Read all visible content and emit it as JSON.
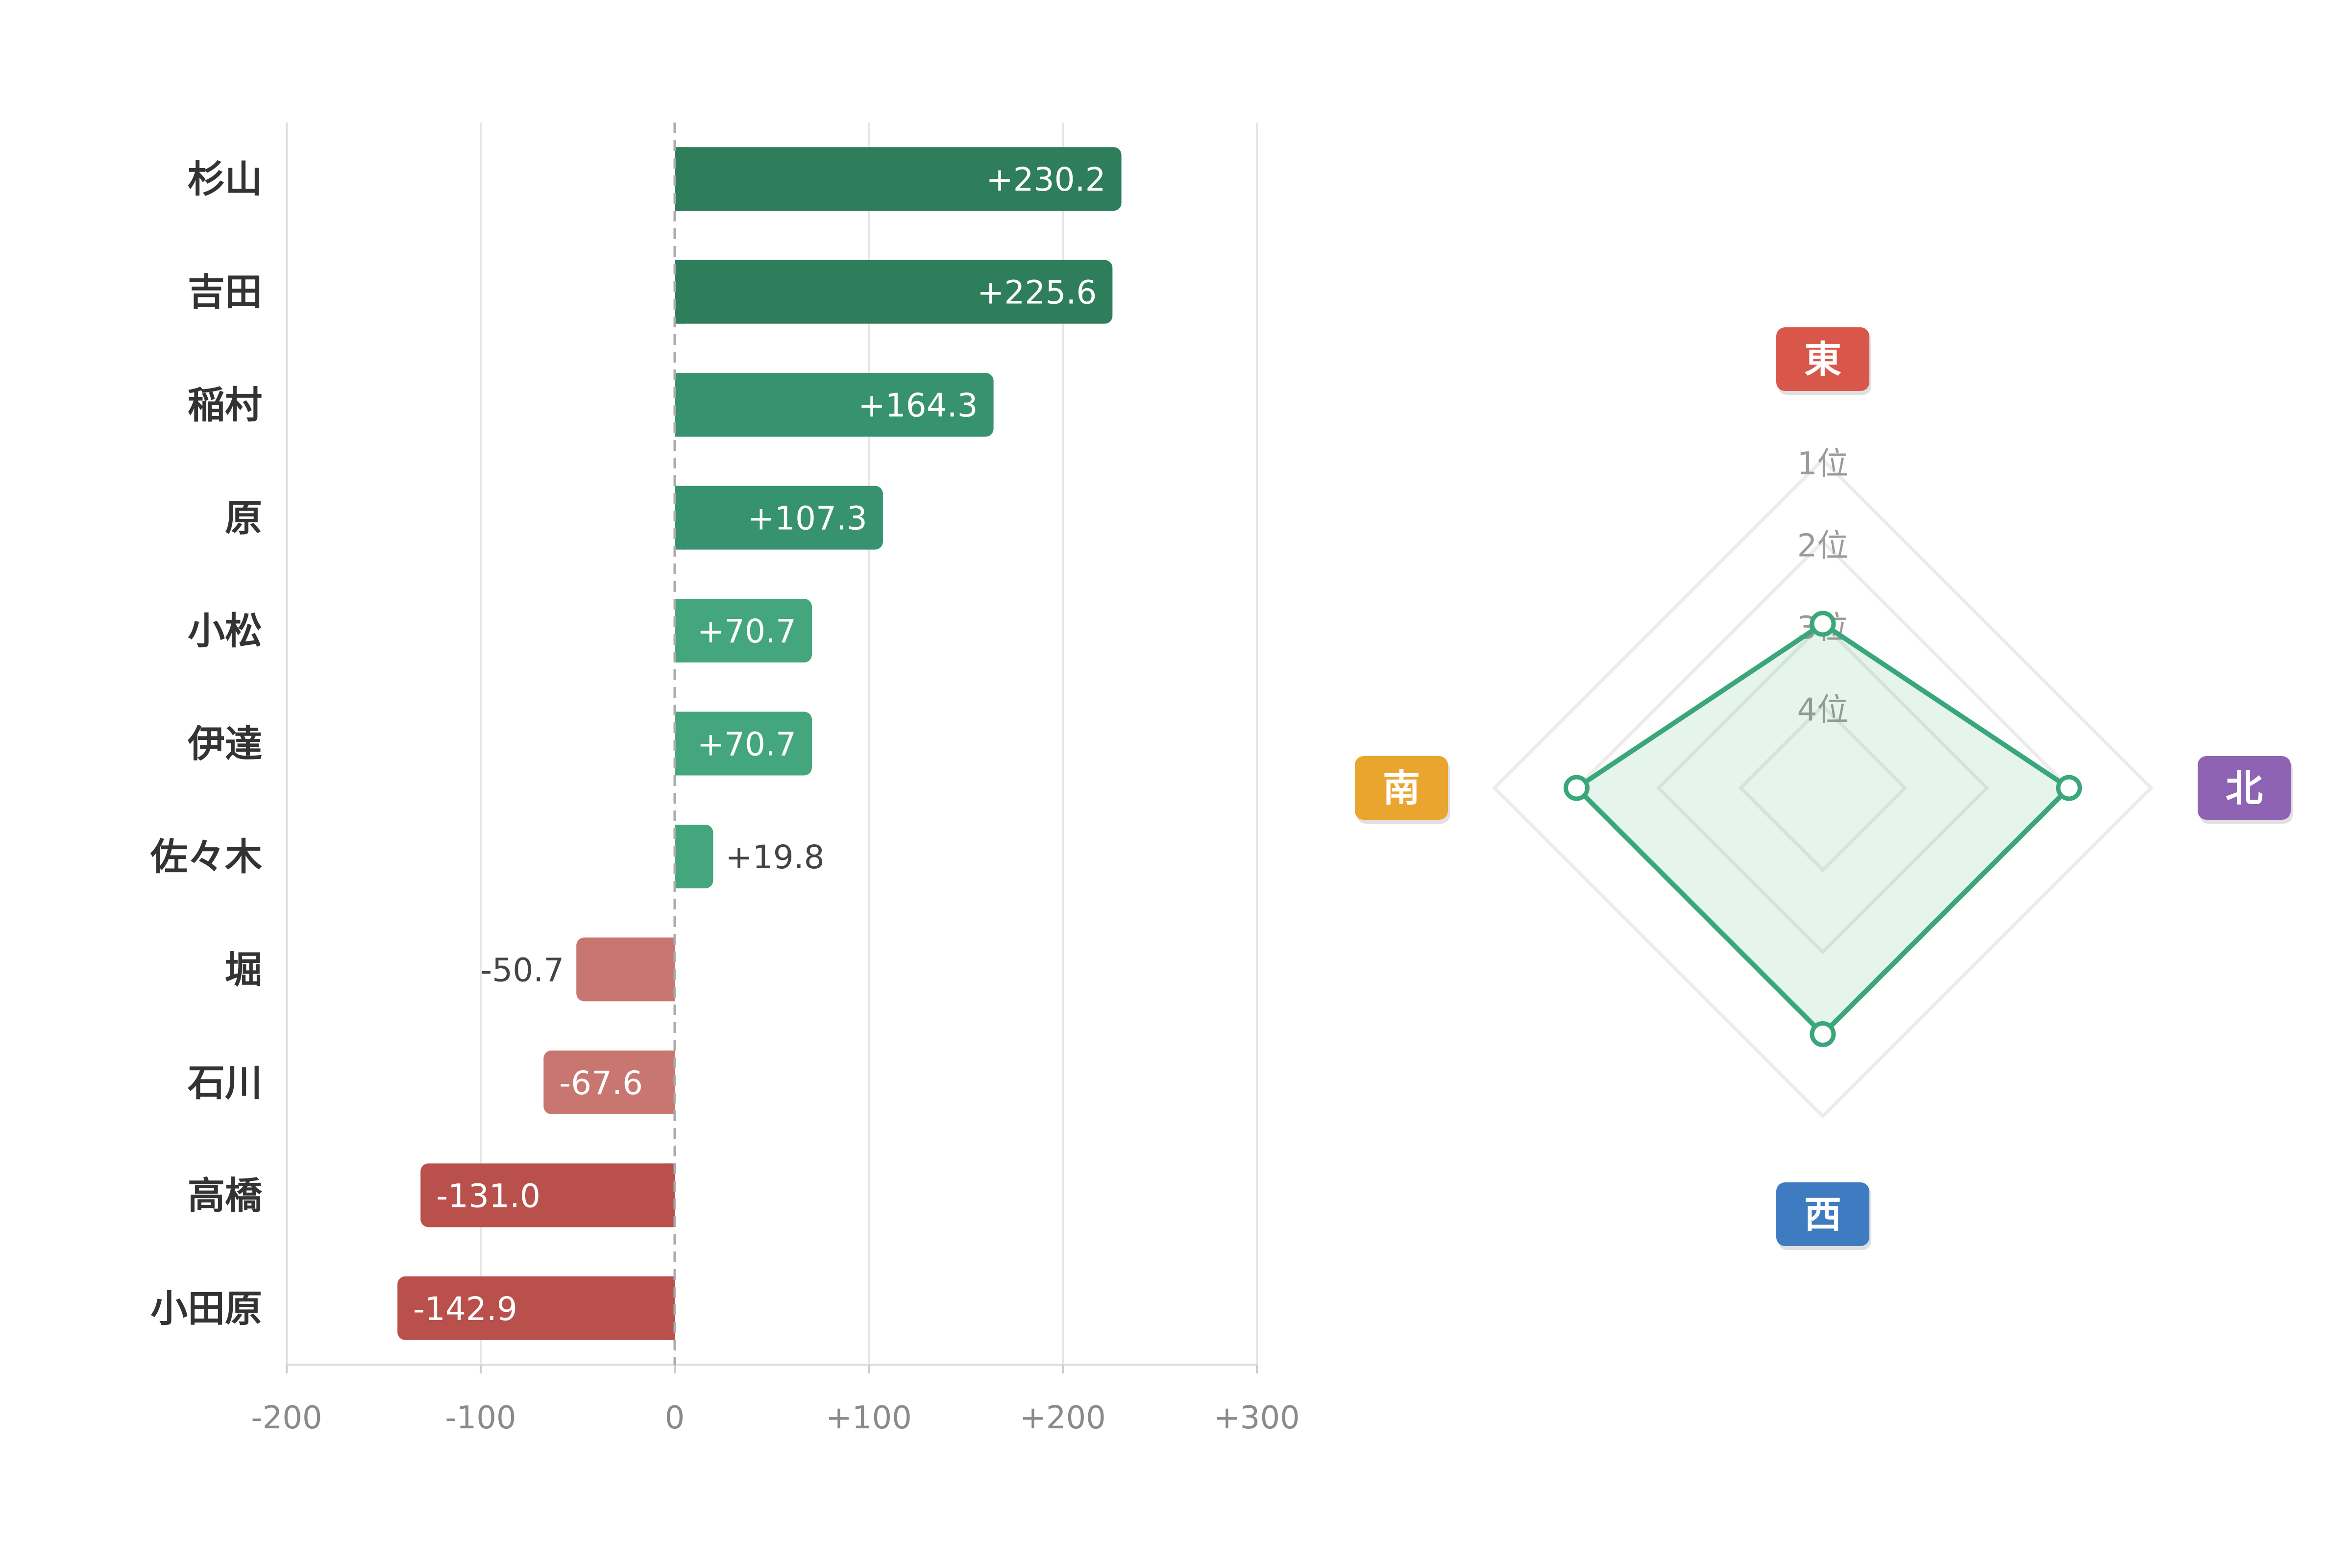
{
  "chart_data": [
    {
      "type": "bar",
      "orientation": "horizontal",
      "categories": [
        "杉山",
        "吉田",
        "稲村",
        "原",
        "小松",
        "伊達",
        "佐々木",
        "堀",
        "石川",
        "高橋",
        "小田原"
      ],
      "values": [
        230.2,
        225.6,
        164.3,
        107.3,
        70.7,
        70.7,
        19.8,
        -50.7,
        -67.6,
        -131.0,
        -142.9
      ],
      "value_labels": [
        "+230.2",
        "+225.6",
        "+164.3",
        "+107.3",
        "+70.7",
        "+70.7",
        "+19.8",
        "-50.7",
        "-67.6",
        "-131.0",
        "-142.9"
      ],
      "xlim": [
        -200,
        300
      ],
      "xticks": [
        -200,
        -100,
        0,
        100,
        200,
        300
      ],
      "xtick_labels": [
        "-200",
        "-100",
        "0",
        "+100",
        "+200",
        "+300"
      ],
      "grid": true,
      "colors": {
        "positive_dark": "#2e7d5b",
        "positive_mid": "#379270",
        "positive_light": "#44a67d",
        "negative_light": "#c97570",
        "negative_dark": "#b9504b",
        "zero_line": "#aaaaaa"
      }
    },
    {
      "type": "radar",
      "axes": [
        "東",
        "北",
        "西",
        "南"
      ],
      "axis_colors": [
        "#d9564a",
        "#8e63b4",
        "#3f7bc0",
        "#e9a52e"
      ],
      "rank_labels": [
        "1位",
        "2位",
        "3位",
        "4位"
      ],
      "values": [
        3,
        2,
        2,
        2
      ],
      "scale": "rank, 1位 outermost, 4位 innermost",
      "series_color": "#3aa77b"
    }
  ]
}
